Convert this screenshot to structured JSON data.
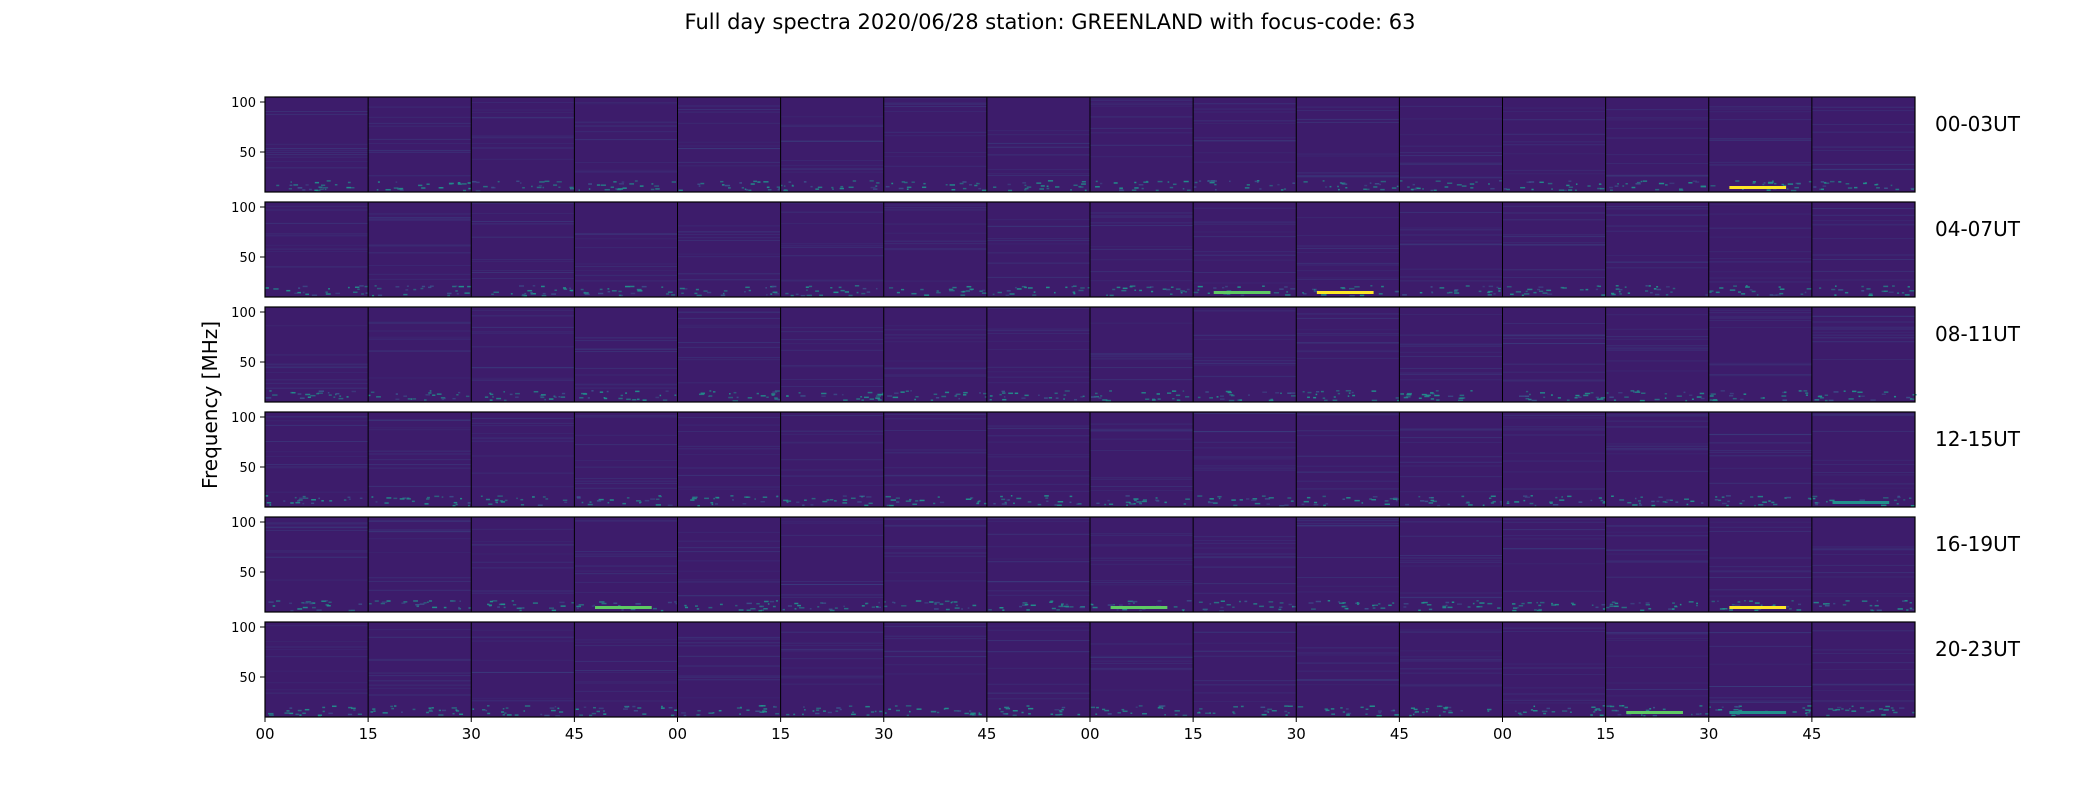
{
  "chart_data": {
    "type": "heatmap",
    "title": "Full day spectra 2020/06/28 station: GREENLAND with focus-code: 63",
    "ylabel": "Frequency [MHz]",
    "xlabel": "",
    "yticks": [
      100,
      50
    ],
    "ylim": [
      10,
      105
    ],
    "xticks": [
      "00",
      "15",
      "30",
      "45",
      "00",
      "15",
      "30",
      "45",
      "00",
      "15",
      "30",
      "45",
      "00",
      "15",
      "30",
      "45"
    ],
    "panels_per_row": 16,
    "panel_minutes": 15,
    "rows": [
      {
        "label": "00-03UT",
        "hours": [
          0,
          1,
          2,
          3
        ]
      },
      {
        "label": "04-07UT",
        "hours": [
          4,
          5,
          6,
          7
        ]
      },
      {
        "label": "08-11UT",
        "hours": [
          8,
          9,
          10,
          11
        ]
      },
      {
        "label": "12-15UT",
        "hours": [
          12,
          13,
          14,
          15
        ]
      },
      {
        "label": "16-19UT",
        "hours": [
          16,
          17,
          18,
          19
        ]
      },
      {
        "label": "20-23UT",
        "hours": [
          20,
          21,
          22,
          23
        ]
      }
    ],
    "colormap": [
      "#440154",
      "#3b528b",
      "#21918c",
      "#5ec962",
      "#fde725"
    ],
    "background_level_color": "#3d1c6b",
    "grid": false,
    "notes_visible_features": "low-frequency band (10-25 MHz) shows intermittent brighter emission; brightest bursts near 00-03UT panel 15, 04-07UT panels 9-10, 20-23UT panels 13-15"
  }
}
